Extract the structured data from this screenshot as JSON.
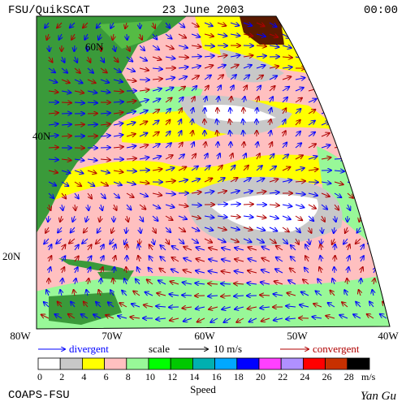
{
  "header": {
    "left": "FSU/QuikSCAT",
    "center": "23 June 2003",
    "right": "00:00"
  },
  "map": {
    "lat_labels": [
      "60N",
      "40N",
      "20N"
    ],
    "lon_labels": [
      "80W",
      "70W",
      "60W",
      "50W",
      "40W"
    ]
  },
  "legend": {
    "divergent": "divergent",
    "scale": "scale",
    "scale_value": "10 m/s",
    "convergent": "convergent"
  },
  "colorbar": {
    "levels": [
      0,
      2,
      4,
      6,
      8,
      10,
      12,
      14,
      16,
      18,
      20,
      22,
      24,
      26,
      28
    ],
    "colors": [
      "#ffffff",
      "#c8c8c8",
      "#ffff00",
      "#ffc0c0",
      "#98f898",
      "#00ff00",
      "#00c800",
      "#00b0b0",
      "#00a8ff",
      "#0000ff",
      "#ff40ff",
      "#b090ff",
      "#ff0000",
      "#c83000",
      "#000000"
    ],
    "unit": "m/s",
    "title": "Speed"
  },
  "footer": {
    "left": "COAPS-FSU",
    "right": "Yan Gu"
  }
}
